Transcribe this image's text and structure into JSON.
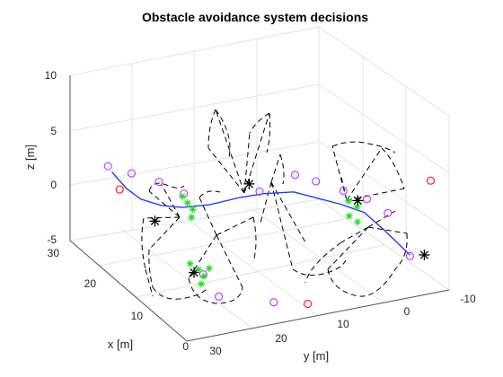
{
  "chart_data": {
    "type": "scatter3d",
    "title": "Obstacle avoidance system decisions",
    "xlabel": "x [m]",
    "ylabel": "y [m]",
    "zlabel": "z [m]",
    "xlim": [
      0,
      30
    ],
    "ylim": [
      -10,
      30
    ],
    "zlim": [
      -5,
      10
    ],
    "xticks": [
      0,
      10,
      20,
      30
    ],
    "yticks": [
      30,
      20,
      10,
      0,
      -10
    ],
    "zticks": [
      -5,
      0,
      5,
      10
    ],
    "grid": true,
    "colors": {
      "path": "#1f3bff",
      "waypoints": "#c040ff",
      "obstacles": "#ff2020",
      "detections": "#22dd22",
      "cones": "#000000"
    },
    "path_xyz": [
      [
        26,
        26,
        2
      ],
      [
        24,
        25,
        1
      ],
      [
        22,
        24,
        0.5
      ],
      [
        20,
        22,
        0.3
      ],
      [
        18,
        20,
        0.5
      ],
      [
        16,
        17,
        1
      ],
      [
        15,
        13,
        1.5
      ],
      [
        14,
        10,
        1.8
      ],
      [
        13,
        6,
        1.8
      ],
      [
        12,
        3,
        1.2
      ],
      [
        11,
        0,
        0.6
      ],
      [
        10,
        -3,
        -0.2
      ],
      [
        8,
        -5,
        -1.5
      ],
      [
        5,
        -7,
        -3
      ]
    ],
    "waypoints_xyz": [
      [
        27,
        26,
        2.2
      ],
      [
        26,
        23,
        1.5
      ],
      [
        24,
        20,
        1
      ],
      [
        21,
        18,
        0.6
      ],
      [
        16,
        18,
        -5.2
      ],
      [
        12,
        18,
        -6
      ],
      [
        8,
        12,
        -6
      ],
      [
        15,
        10,
        1.7
      ],
      [
        16,
        4,
        2.2
      ],
      [
        14,
        2,
        2
      ],
      [
        12,
        -1,
        1.4
      ],
      [
        11,
        -4,
        0.6
      ],
      [
        9,
        -6,
        -0.3
      ],
      [
        5,
        -7,
        -3.1
      ]
    ],
    "nodes_xyz": [
      [
        20,
        23,
        -1
      ],
      [
        16,
        11,
        2.2
      ],
      [
        10,
        -2,
        1
      ],
      [
        15,
        20,
        -4.5
      ],
      [
        3,
        -8,
        -2.5
      ]
    ],
    "obstacles_xyz": [
      [
        24,
        26,
        1
      ],
      [
        6,
        8,
        -6
      ],
      [
        -2,
        -6,
        6
      ]
    ],
    "detections_xyz": [
      [
        18,
        20,
        1.5
      ],
      [
        17.5,
        19.5,
        1
      ],
      [
        17,
        19,
        0.5
      ],
      [
        16.5,
        19.5,
        0
      ],
      [
        16,
        20,
        -4
      ],
      [
        15.5,
        19,
        -4.5
      ],
      [
        15,
        18.5,
        -5
      ],
      [
        14.5,
        18,
        -4.2
      ],
      [
        14,
        19.5,
        -5.3
      ],
      [
        9,
        0,
        1.5
      ],
      [
        8.5,
        -1,
        1
      ],
      [
        8,
        0.5,
        0.5
      ],
      [
        7.5,
        -0.5,
        0
      ]
    ]
  }
}
